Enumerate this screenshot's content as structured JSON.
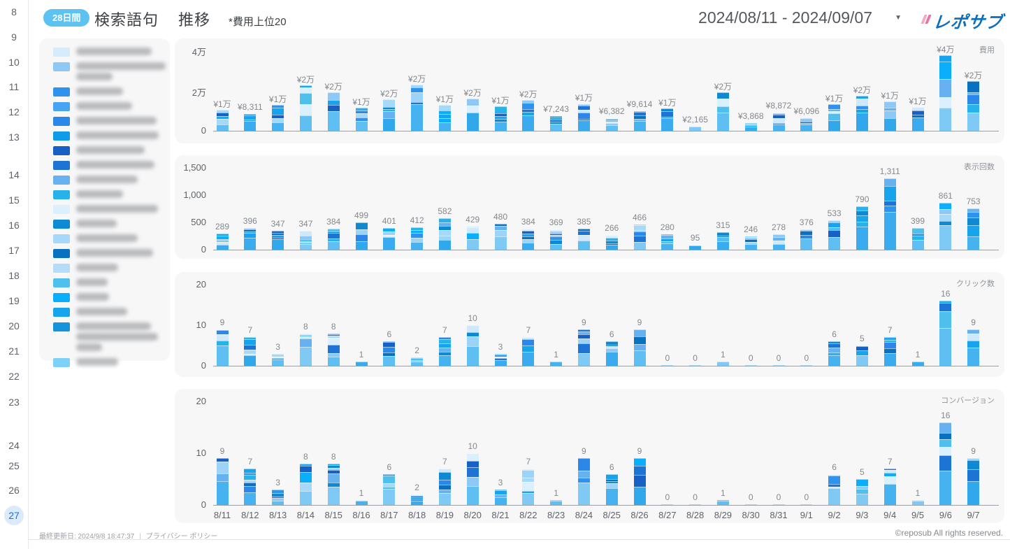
{
  "page_nav": {
    "pages": [
      "8",
      "9",
      "10",
      "11",
      "12",
      "13",
      "14",
      "15",
      "16",
      "17",
      "18",
      "19",
      "20",
      "21",
      "22",
      "23",
      "24",
      "25",
      "26",
      "27"
    ],
    "active": "27"
  },
  "header": {
    "badge": "28日間",
    "title": "検索語句",
    "subtitle": "推移",
    "note": "*費用上位20",
    "date_range": "2024/08/11 - 2024/09/07",
    "caret_icon": "▼",
    "logo_text": "レポサブ"
  },
  "legend": {
    "redacted": true,
    "items": [
      {
        "color": "#d6ecfc",
        "lines": [
          108
        ]
      },
      {
        "color": "#8ec8f6",
        "lines": [
          128,
          52
        ]
      },
      {
        "color": "#2e93ef",
        "lines": [
          67
        ]
      },
      {
        "color": "#4aa2f2",
        "lines": [
          80
        ]
      },
      {
        "color": "#2b88e8",
        "lines": [
          115
        ]
      },
      {
        "color": "#109be9",
        "lines": [
          118
        ]
      },
      {
        "color": "#1660c6",
        "lines": [
          98
        ]
      },
      {
        "color": "#1d74d4",
        "lines": [
          112
        ]
      },
      {
        "color": "#67b1f1",
        "lines": [
          88
        ]
      },
      {
        "color": "#28b2ea",
        "lines": [
          67
        ]
      },
      {
        "color": "#dbeffd",
        "lines": [
          117
        ]
      },
      {
        "color": "#0f8ad2",
        "lines": [
          58
        ]
      },
      {
        "color": "#a6d9f9",
        "lines": [
          88
        ]
      },
      {
        "color": "#0a70c0",
        "lines": [
          110
        ]
      },
      {
        "color": "#b5dcf8",
        "lines": [
          60
        ]
      },
      {
        "color": "#4fc0ee",
        "lines": [
          45
        ]
      },
      {
        "color": "#0aaefa",
        "lines": [
          47
        ]
      },
      {
        "color": "#18a3ed",
        "lines": [
          73
        ]
      },
      {
        "color": "#1693db",
        "lines": [
          107,
          117,
          37
        ]
      },
      {
        "color": "#7fd0f7",
        "lines": [
          60
        ]
      }
    ]
  },
  "chart_data": [
    {
      "type": "bar",
      "stacked": true,
      "title": "費用",
      "legend_position": "right-top",
      "categories": [
        "8/11",
        "8/12",
        "8/13",
        "8/14",
        "8/15",
        "8/16",
        "8/17",
        "8/18",
        "8/19",
        "8/20",
        "8/21",
        "8/22",
        "8/23",
        "8/24",
        "8/25",
        "8/26",
        "8/27",
        "8/28",
        "8/29",
        "8/30",
        "8/31",
        "9/1",
        "9/2",
        "9/3",
        "9/4",
        "9/5",
        "9/6",
        "9/7"
      ],
      "values": [
        10500,
        8311,
        13000,
        22500,
        19000,
        11500,
        15500,
        23000,
        13000,
        16000,
        12200,
        15300,
        7243,
        13500,
        6382,
        9614,
        11000,
        2165,
        19000,
        3868,
        8872,
        6096,
        13200,
        17400,
        14600,
        11800,
        37500,
        24700
      ],
      "bar_labels": [
        "¥1万",
        "¥8,311",
        "¥1万",
        "¥2万",
        "¥2万",
        "¥1万",
        "¥2万",
        "¥2万",
        "¥1万",
        "¥2万",
        "¥1万",
        "¥2万",
        "¥7,243",
        "¥1万",
        "¥6,382",
        "¥9,614",
        "¥1万",
        "¥2,165",
        "¥2万",
        "¥3,868",
        "¥8,872",
        "¥6,096",
        "¥1万",
        "¥2万",
        "¥1万",
        "¥1万",
        "¥4万",
        "¥2万"
      ],
      "y_ticks": [
        "4万",
        "2万",
        "0"
      ],
      "ylim": [
        0,
        40000
      ],
      "grid": false,
      "x_labels_visible": false
    },
    {
      "type": "bar",
      "stacked": true,
      "title": "表示回数",
      "legend_position": "right-top",
      "categories": [
        "8/11",
        "8/12",
        "8/13",
        "8/14",
        "8/15",
        "8/16",
        "8/17",
        "8/18",
        "8/19",
        "8/20",
        "8/21",
        "8/22",
        "8/23",
        "8/24",
        "8/25",
        "8/26",
        "8/27",
        "8/28",
        "8/29",
        "8/30",
        "8/31",
        "9/1",
        "9/2",
        "9/3",
        "9/4",
        "9/5",
        "9/6",
        "9/7"
      ],
      "values": [
        289,
        396,
        347,
        347,
        384,
        499,
        401,
        412,
        582,
        429,
        480,
        384,
        369,
        385,
        266,
        466,
        280,
        95,
        315,
        246,
        278,
        376,
        533,
        790,
        1311,
        399,
        861,
        753
      ],
      "bar_labels": [
        "289",
        "396",
        "347",
        "347",
        "384",
        "499",
        "401",
        "412",
        "582",
        "429",
        "480",
        "384",
        "369",
        "385",
        "266",
        "466",
        "280",
        "95",
        "315",
        "246",
        "278",
        "376",
        "533",
        "790",
        "1,311",
        "399",
        "861",
        "753"
      ],
      "y_ticks": [
        "1,500",
        "1,000",
        "500",
        "0"
      ],
      "ylim": [
        0,
        1500
      ],
      "grid": false,
      "x_labels_visible": false
    },
    {
      "type": "bar",
      "stacked": true,
      "title": "クリック数",
      "legend_position": "right-top",
      "categories": [
        "8/11",
        "8/12",
        "8/13",
        "8/14",
        "8/15",
        "8/16",
        "8/17",
        "8/18",
        "8/19",
        "8/20",
        "8/21",
        "8/22",
        "8/23",
        "8/24",
        "8/25",
        "8/26",
        "8/27",
        "8/28",
        "8/29",
        "8/30",
        "8/31",
        "9/1",
        "9/2",
        "9/3",
        "9/4",
        "9/5",
        "9/6",
        "9/7"
      ],
      "values": [
        9,
        7,
        3,
        8,
        8,
        1,
        6,
        2,
        7,
        10,
        3,
        7,
        1,
        9,
        6,
        9,
        0,
        0,
        1,
        0,
        0,
        0,
        6,
        5,
        7,
        1,
        16,
        9
      ],
      "bar_labels": [
        "9",
        "7",
        "3",
        "8",
        "8",
        "1",
        "6",
        "2",
        "7",
        "10",
        "3",
        "7",
        "1",
        "9",
        "6",
        "9",
        "0",
        "0",
        "1",
        "0",
        "0",
        "0",
        "6",
        "5",
        "7",
        "1",
        "16",
        "9"
      ],
      "y_ticks": [
        "20",
        "10",
        "0"
      ],
      "ylim": [
        0,
        20
      ],
      "grid": false,
      "x_labels_visible": false
    },
    {
      "type": "bar",
      "stacked": true,
      "title": "コンバージョン",
      "legend_position": "right-top",
      "categories": [
        "8/11",
        "8/12",
        "8/13",
        "8/14",
        "8/15",
        "8/16",
        "8/17",
        "8/18",
        "8/19",
        "8/20",
        "8/21",
        "8/22",
        "8/23",
        "8/24",
        "8/25",
        "8/26",
        "8/27",
        "8/28",
        "8/29",
        "8/30",
        "8/31",
        "9/1",
        "9/2",
        "9/3",
        "9/4",
        "9/5",
        "9/6",
        "9/7"
      ],
      "values": [
        9,
        7,
        3,
        8,
        8,
        1,
        6,
        2,
        7,
        10,
        3,
        7,
        1,
        9,
        6,
        9,
        0,
        0,
        1,
        0,
        0,
        0,
        6,
        5,
        7,
        1,
        16,
        9
      ],
      "bar_labels": [
        "9",
        "7",
        "3",
        "8",
        "8",
        "1",
        "6",
        "2",
        "7",
        "10",
        "3",
        "7",
        "1",
        "9",
        "6",
        "9",
        "0",
        "0",
        "1",
        "0",
        "0",
        "0",
        "6",
        "5",
        "7",
        "1",
        "16",
        "9"
      ],
      "y_ticks": [
        "20",
        "10",
        "0"
      ],
      "ylim": [
        0,
        20
      ],
      "grid": false,
      "x_labels_visible": true
    }
  ],
  "colors": {
    "panel_bg": "#f7f7f8",
    "badge_bg": "#5cc2f2",
    "active_page": "#1a6ff0",
    "logo_blue": "#0e6fba",
    "logo_pink": "#ef6fa0",
    "bar_bottom_shades": [
      "#5fbef2",
      "#47b2f0",
      "#31a7ec",
      "#7ecaf5",
      "#3aabee"
    ],
    "bar_stripe_shades": [
      "#cfe9fb",
      "#9bd4f8",
      "#2e93ef",
      "#1660c6",
      "#0a70c0",
      "#28b2ea",
      "#0aaefa",
      "#1d74d4",
      "#67b1f1",
      "#dbeffd",
      "#0f8ad2",
      "#a6d9f9",
      "#4fc0ee",
      "#18a3ed",
      "#8ec8f6",
      "#2b88e8"
    ]
  },
  "footer": {
    "updated": "最終更新日: 2024/9/8 18:47:37",
    "separator": "|",
    "privacy_link": "プライバシー ポリシー",
    "copyright": "©reposub All rights reserved."
  }
}
